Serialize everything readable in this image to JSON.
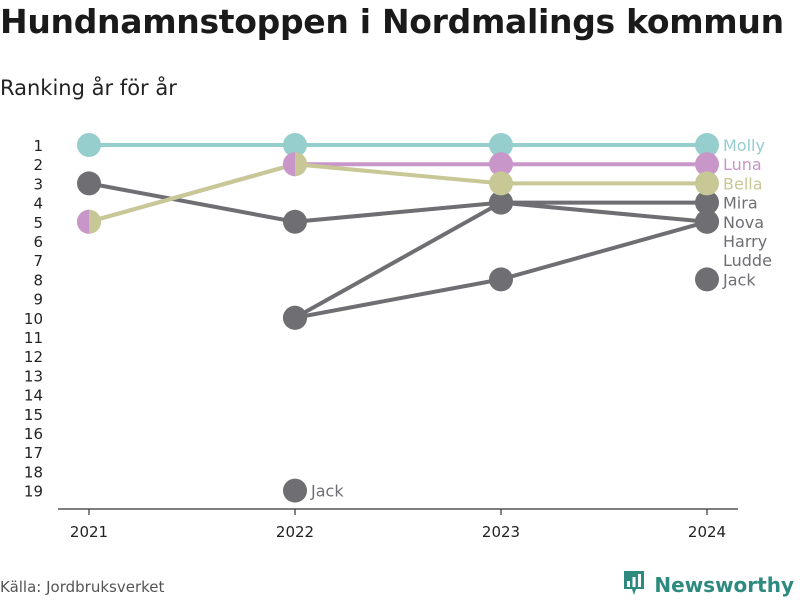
{
  "title": "Hundnamnstoppen i Nordmalings kommun",
  "subtitle": "Ranking år för år",
  "source": "Källa: Jordbruksverket",
  "brand": {
    "name": "Newsworthy",
    "icon": "bar-chart-icon",
    "color": "#2e8a7f"
  },
  "chart_data": {
    "type": "line",
    "x": [
      "2021",
      "2022",
      "2023",
      "2024"
    ],
    "y_ticks": [
      "1",
      "2",
      "3",
      "4",
      "5",
      "6",
      "7",
      "8",
      "9",
      "10",
      "11",
      "12",
      "13",
      "14",
      "15",
      "16",
      "17",
      "18",
      "19"
    ],
    "y_reversed": true,
    "ylim": [
      1,
      19
    ],
    "series": [
      {
        "name": "Molly",
        "color": "#96cdcd",
        "values": [
          1,
          1,
          1,
          1
        ],
        "end_label_rank": 1
      },
      {
        "name": "Luna",
        "color": "#c896c8",
        "values": [
          5,
          2,
          2,
          2
        ],
        "end_label_rank": 2
      },
      {
        "name": "Bella",
        "color": "#c8c896",
        "values": [
          5,
          2,
          3,
          3
        ],
        "end_label_rank": 3
      },
      {
        "name": "Mira",
        "color": "#6e6e73",
        "values": [
          null,
          10,
          4,
          4
        ],
        "end_label_rank": 4
      },
      {
        "name": "Nova",
        "color": "#6e6e73",
        "values": [
          3,
          5,
          4,
          5
        ],
        "end_label_rank": 5
      },
      {
        "name": "Harry",
        "color": "#6e6e73",
        "values": [
          null,
          10,
          8,
          5
        ],
        "end_label_rank": 6
      },
      {
        "name": "Ludde",
        "color": "#6e6e73",
        "values": [
          null,
          null,
          null,
          null
        ],
        "end_label_rank": 7
      },
      {
        "name": "Jack",
        "color": "#6e6e73",
        "values": [
          null,
          19,
          null,
          8
        ],
        "end_label_rank": 8
      }
    ],
    "annotations": [
      {
        "text": "Jack",
        "x": "2022",
        "y": 19
      }
    ],
    "grid": false,
    "legend": "none"
  }
}
